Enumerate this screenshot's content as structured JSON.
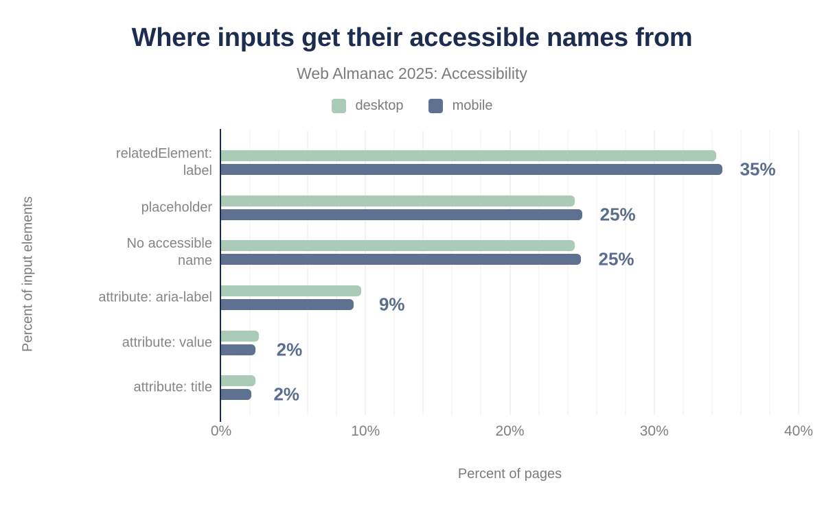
{
  "title": "Where inputs get their accessible names from",
  "subtitle": "Web Almanac 2025: Accessibility",
  "legend": {
    "items": [
      {
        "name": "desktop",
        "label": "desktop",
        "color": "#a9cbb7"
      },
      {
        "name": "mobile",
        "label": "mobile",
        "color": "#5f7190"
      }
    ]
  },
  "colors": {
    "title": "#1d2d4f",
    "desktop_bar": "#a9cbb7",
    "mobile_bar": "#5f7190",
    "value_label": "#5b6d8e",
    "axis_line": "#1d2c46",
    "muted_text": "#7b7b7b",
    "gridline": "#ededed"
  },
  "chart_data": {
    "type": "bar",
    "orientation": "horizontal",
    "title": "Where inputs get their accessible names from",
    "subtitle": "Web Almanac 2025: Accessibility",
    "xlabel": "Percent of pages",
    "ylabel": "Percent of input elements",
    "xlim": [
      0,
      40
    ],
    "grid": "minor vertical every 2%, major every 10%",
    "grid_minor_step": 2,
    "grid_major_step": 10,
    "legend_position": "top center",
    "categories": [
      "relatedElement:\nlabel",
      "placeholder",
      "No accessible\nname",
      "attribute: aria-label",
      "attribute: value",
      "attribute: title"
    ],
    "series": [
      {
        "name": "desktop",
        "values": [
          34.3,
          24.5,
          24.5,
          9.7,
          2.6,
          2.4
        ]
      },
      {
        "name": "mobile",
        "values": [
          34.7,
          25.0,
          24.9,
          9.2,
          2.4,
          2.1
        ]
      }
    ],
    "value_labels": [
      "35%",
      "25%",
      "25%",
      "9%",
      "2%",
      "2%"
    ],
    "x_ticks": [
      {
        "label": "0%",
        "value": 0
      },
      {
        "label": "10%",
        "value": 10
      },
      {
        "label": "20%",
        "value": 20
      },
      {
        "label": "30%",
        "value": 30
      },
      {
        "label": "40%",
        "value": 40
      }
    ]
  }
}
